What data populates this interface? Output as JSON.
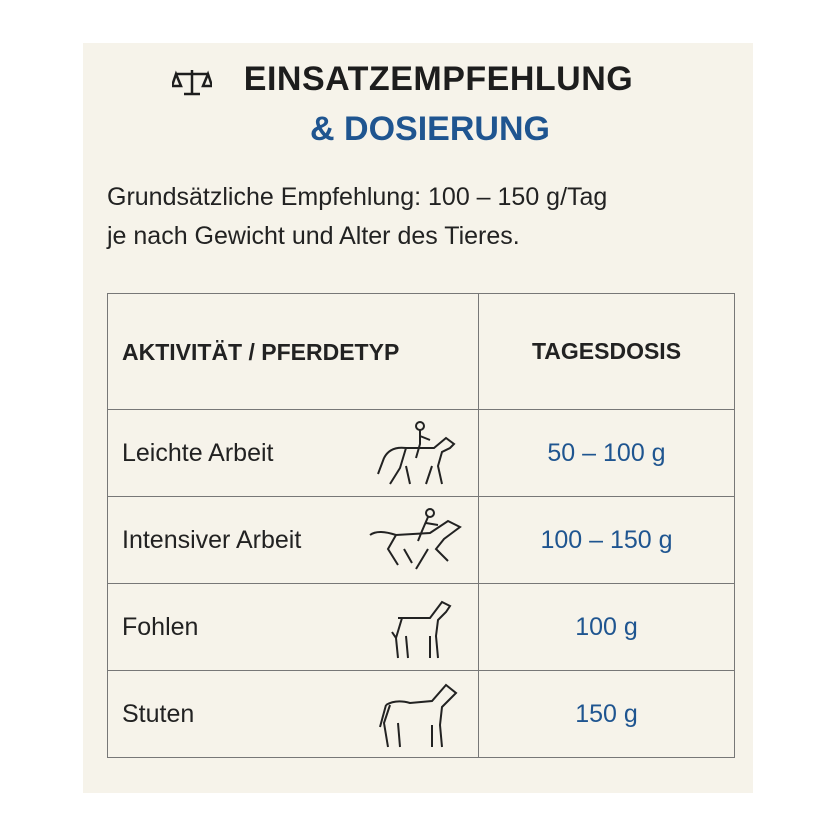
{
  "header": {
    "title": "EINSATZEMPFEHLUNG",
    "subtitle": "& DOSIERUNG"
  },
  "intro": [
    "Grundsätzliche Empfehlung: 100 – 150 g/Tag",
    "je nach Gewicht und Alter des Tieres."
  ],
  "table": {
    "headers": [
      "AKTIVITÄT / PFERDETYP",
      "TAGESDOSIS"
    ],
    "rows": [
      [
        "Leichte Arbeit",
        "50 – 100 g"
      ],
      [
        "Intensiver Arbeit",
        "100 – 150 g"
      ],
      [
        "Fohlen",
        "100 g"
      ],
      [
        "Stuten",
        "150 g"
      ]
    ]
  }
}
